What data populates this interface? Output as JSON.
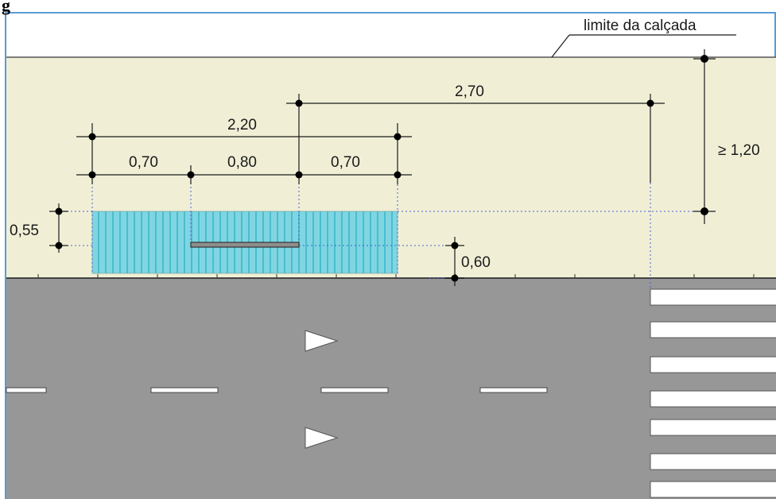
{
  "labels": {
    "corner_fragment": "g",
    "curb_limit": "limite da calçada",
    "total_width": "2,20",
    "segment_left": "0,70",
    "segment_middle": "0,80",
    "segment_right": "0,70",
    "distance_to_crosswalk": "2,70",
    "min_clearance": "≥ 1,20",
    "depth": "0,55",
    "curb_offset": "0,60"
  },
  "colors": {
    "sidewalk": "#f0efd6",
    "road": "#979797",
    "tactile_area": "#7fd6e2",
    "tactile_stripe": "#4bbccd",
    "guide_line": "#4a5fd0",
    "road_marking": "#ffffff",
    "dimension_line": "#1a1a1a",
    "frame_border": "#5b9bd5"
  },
  "icons": {
    "lane_arrow_upper": "right-arrow-icon",
    "lane_arrow_lower": "right-arrow-icon"
  }
}
